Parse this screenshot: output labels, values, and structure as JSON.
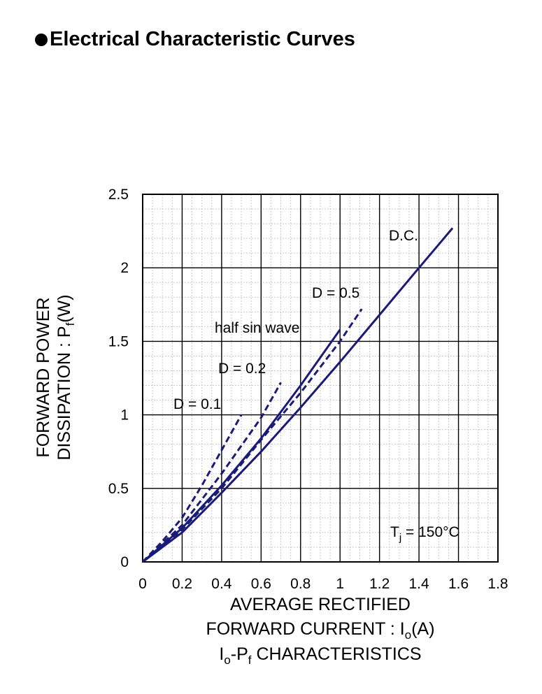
{
  "header": {
    "title": "Electrical Characteristic Curves"
  },
  "chart_data": {
    "type": "line",
    "xlabel_line1": "AVERAGE RECTIFIED",
    "xlabel_line2_prefix": "FORWARD CURRENT : I",
    "xlabel_line2_sub": "o",
    "xlabel_line2_suffix": "(A)",
    "ylabel_line1": "FORWARD POWER",
    "ylabel_line2_prefix": "DISSIPATION : P",
    "ylabel_line2_sub": "f",
    "ylabel_line2_suffix": "(W)",
    "caption_I": "I",
    "caption_sub_o": "o",
    "caption_mid": "-P",
    "caption_sub_f": "f",
    "caption_rest": " CHARACTERISTICS",
    "xlim": [
      0,
      1.8
    ],
    "ylim": [
      0,
      2.5
    ],
    "x_ticks": [
      "0",
      "0.2",
      "0.4",
      "0.6",
      "0.8",
      "1",
      "1.2",
      "1.4",
      "1.6",
      "1.8"
    ],
    "y_ticks": [
      "0",
      "0.5",
      "1",
      "1.5",
      "2",
      "2.5"
    ],
    "grid": "major and minor",
    "line_color": "#1a1a7a",
    "annotation_T": "T",
    "annotation_T_sub": "j",
    "annotation_T_rest": " = 150°C",
    "series": [
      {
        "name": "D.C.",
        "style": "solid",
        "x": [
          0,
          0.2,
          0.4,
          0.6,
          0.8,
          1.0,
          1.2,
          1.4,
          1.57
        ],
        "y": [
          0,
          0.2,
          0.47,
          0.75,
          1.05,
          1.36,
          1.68,
          2.0,
          2.27
        ]
      },
      {
        "name": "D = 0.5",
        "style": "dashed",
        "x": [
          0,
          0.2,
          0.4,
          0.6,
          0.8,
          1.0,
          1.11
        ],
        "y": [
          0,
          0.22,
          0.5,
          0.83,
          1.15,
          1.5,
          1.72
        ]
      },
      {
        "name": "half sin wave",
        "style": "solid",
        "x": [
          0,
          0.2,
          0.4,
          0.6,
          0.8,
          1.0
        ],
        "y": [
          0,
          0.23,
          0.52,
          0.84,
          1.2,
          1.58
        ]
      },
      {
        "name": "D = 0.2",
        "style": "dashed",
        "x": [
          0,
          0.2,
          0.4,
          0.6,
          0.7
        ],
        "y": [
          0,
          0.25,
          0.6,
          0.98,
          1.22
        ]
      },
      {
        "name": "D = 0.1",
        "style": "dashed",
        "x": [
          0,
          0.1,
          0.2,
          0.3,
          0.4,
          0.5
        ],
        "y": [
          0,
          0.14,
          0.3,
          0.52,
          0.76,
          1.0
        ]
      }
    ]
  }
}
